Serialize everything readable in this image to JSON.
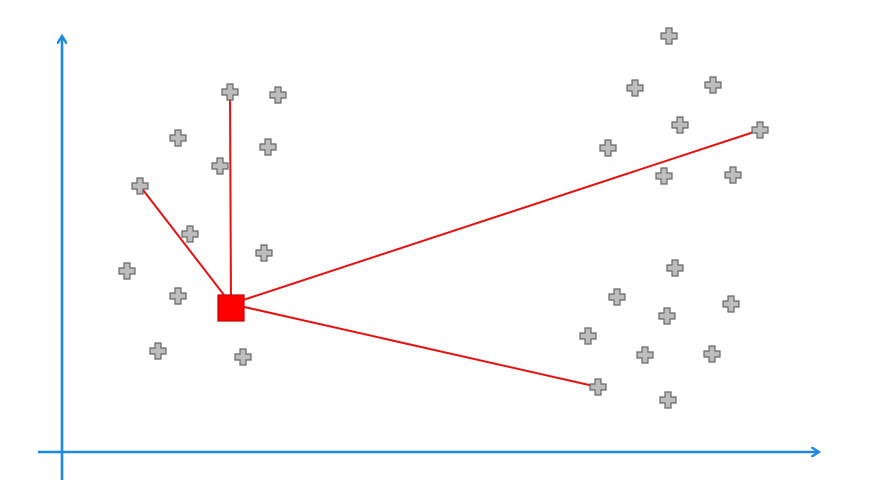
{
  "colors": {
    "axis": "#1e88e5",
    "link": "#e81010",
    "centroid_fill": "#ff0000",
    "centroid_stroke": "#c40000",
    "point_fill": "#bdbdbd",
    "point_stroke": "#666666"
  },
  "icons": {
    "point": "plus-marker-icon",
    "centroid": "square-marker-icon"
  },
  "diagram": {
    "axes": [
      "x-axis-arrow",
      "y-axis-arrow"
    ],
    "centroid_label": "",
    "links_from_centroid_to_point_index": [
      1,
      6,
      25,
      34
    ]
  }
}
